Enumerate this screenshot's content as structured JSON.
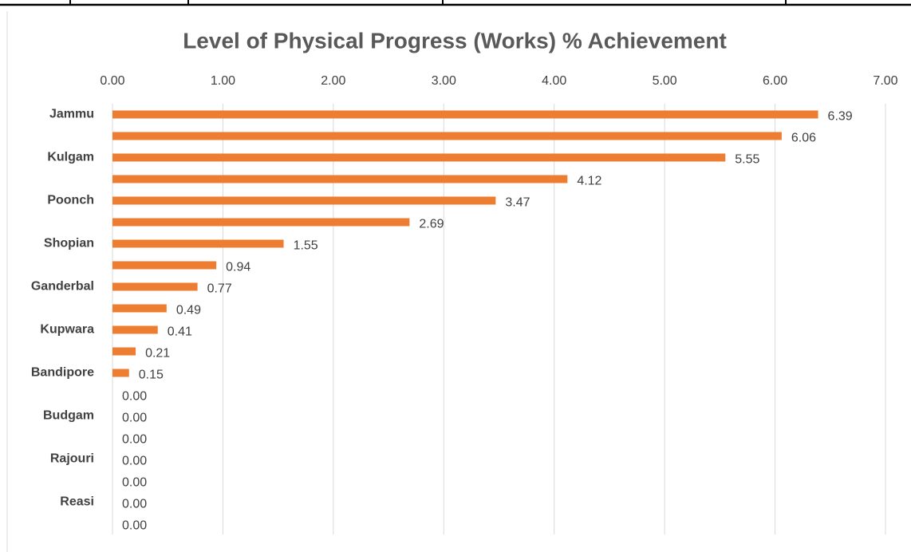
{
  "chart_data": {
    "type": "barh",
    "title": "Level of Physical Progress (Works)  % Achievement",
    "categories": [
      "Jammu",
      null,
      "Kulgam",
      null,
      "Poonch",
      null,
      "Shopian",
      null,
      "Ganderbal",
      null,
      "Kupwara",
      null,
      "Bandipore",
      null,
      "Budgam",
      null,
      "Rajouri",
      null,
      "Reasi",
      null
    ],
    "values": [
      6.39,
      6.06,
      5.55,
      4.12,
      3.47,
      2.69,
      1.55,
      0.94,
      0.77,
      0.49,
      0.41,
      0.21,
      0.15,
      0,
      0,
      0,
      0,
      0,
      0,
      0
    ],
    "value_labels": [
      "6.39",
      "6.06",
      "5.55",
      "4.12",
      "3.47",
      "2.69",
      "1.55",
      "0.94",
      "0.77",
      "0.49",
      "0.41",
      "0.21",
      "0.15",
      "0.00",
      "0.00",
      "0.00",
      "0.00",
      "0.00",
      "0.00",
      "0.00"
    ],
    "color": "#ed7d31",
    "xlim": [
      0,
      7
    ],
    "xticks": [
      {
        "value": 0,
        "label": "0.00"
      },
      {
        "value": 1,
        "label": "1.00"
      },
      {
        "value": 2,
        "label": "2.00"
      },
      {
        "value": 3,
        "label": "3.00"
      },
      {
        "value": 4,
        "label": "4.00"
      },
      {
        "value": 5,
        "label": "5.00"
      },
      {
        "value": 6,
        "label": "6.00"
      },
      {
        "value": 7,
        "label": "7.00"
      }
    ],
    "grid": true
  }
}
